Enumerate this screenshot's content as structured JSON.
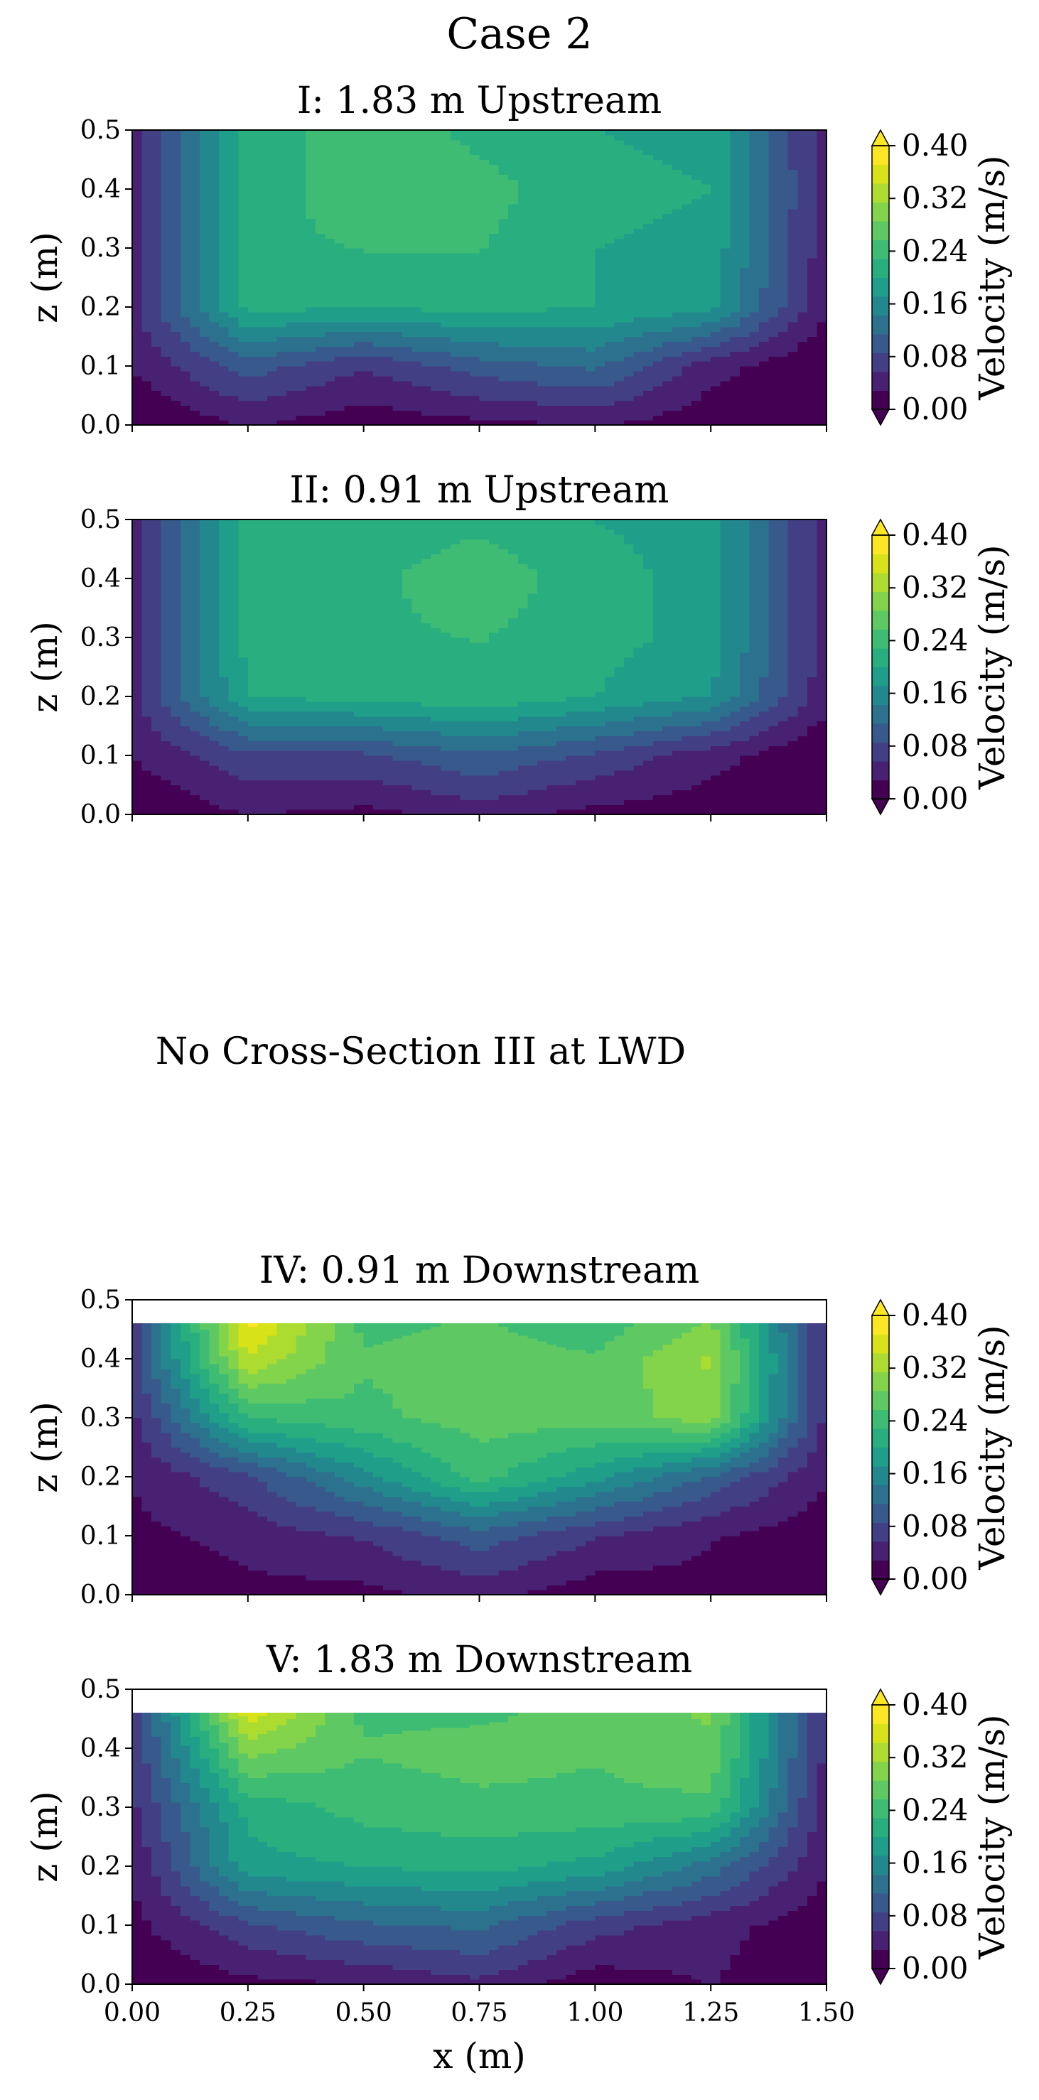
{
  "figure": {
    "suptitle": "Case 2",
    "note": "No Cross-Section III at LWD",
    "colors": [
      "#440154",
      "#482172",
      "#423f85",
      "#38598c",
      "#2c718e",
      "#23888e",
      "#1f9e89",
      "#29af7f",
      "#3fbc73",
      "#5ec962",
      "#84d44b",
      "#addc30",
      "#d8e219",
      "#fde725"
    ]
  },
  "chart_data": [
    {
      "type": "heatmap",
      "title": "I: 1.83 m Upstream",
      "xlabel": "",
      "ylabel": "z (m)",
      "xlim": [
        0.0,
        1.5
      ],
      "ylim": [
        0.0,
        0.5
      ],
      "yticks": [
        "0.0",
        "0.1",
        "0.2",
        "0.3",
        "0.4",
        "0.5"
      ],
      "xticks": [],
      "colorbar": {
        "label": "Velocity (m/s)",
        "ticks": [
          "0.00",
          "0.08",
          "0.16",
          "0.24",
          "0.32",
          "0.40"
        ],
        "vmin": 0.0,
        "vmax": 0.4
      },
      "water_surface": 0.5,
      "x": [
        0.0,
        0.25,
        0.5,
        0.75,
        1.0,
        1.25,
        1.5
      ],
      "z": [
        0.0,
        0.1,
        0.2,
        0.3,
        0.4,
        0.5
      ],
      "values": [
        [
          0.0,
          0.03,
          0.01,
          0.02,
          0.03,
          0.01,
          0.0
        ],
        [
          0.03,
          0.1,
          0.06,
          0.1,
          0.12,
          0.04,
          0.0
        ],
        [
          0.05,
          0.21,
          0.2,
          0.21,
          0.2,
          0.18,
          0.03
        ],
        [
          0.05,
          0.22,
          0.23,
          0.23,
          0.2,
          0.19,
          0.04
        ],
        [
          0.05,
          0.21,
          0.25,
          0.24,
          0.21,
          0.2,
          0.04
        ],
        [
          0.05,
          0.21,
          0.25,
          0.22,
          0.2,
          0.19,
          0.04
        ]
      ]
    },
    {
      "type": "heatmap",
      "title": "II: 0.91 m Upstream",
      "xlabel": "",
      "ylabel": "z (m)",
      "xlim": [
        0.0,
        1.5
      ],
      "ylim": [
        0.0,
        0.5
      ],
      "yticks": [
        "0.0",
        "0.1",
        "0.2",
        "0.3",
        "0.4",
        "0.5"
      ],
      "xticks": [],
      "colorbar": {
        "label": "Velocity (m/s)",
        "ticks": [
          "0.00",
          "0.08",
          "0.16",
          "0.24",
          "0.32",
          "0.40"
        ],
        "vmin": 0.0,
        "vmax": 0.4
      },
      "water_surface": 0.5,
      "x": [
        0.0,
        0.25,
        0.5,
        0.75,
        1.0,
        1.25,
        1.5
      ],
      "z": [
        0.0,
        0.1,
        0.2,
        0.3,
        0.4,
        0.5
      ],
      "values": [
        [
          0.0,
          0.03,
          0.02,
          0.04,
          0.02,
          0.01,
          0.0
        ],
        [
          0.03,
          0.08,
          0.08,
          0.11,
          0.08,
          0.04,
          0.0
        ],
        [
          0.05,
          0.2,
          0.21,
          0.22,
          0.2,
          0.17,
          0.04
        ],
        [
          0.05,
          0.21,
          0.22,
          0.23,
          0.21,
          0.19,
          0.04
        ],
        [
          0.05,
          0.21,
          0.22,
          0.25,
          0.21,
          0.19,
          0.04
        ],
        [
          0.05,
          0.21,
          0.21,
          0.22,
          0.2,
          0.19,
          0.04
        ]
      ]
    },
    {
      "type": "heatmap",
      "title": "IV: 0.91 m Downstream",
      "xlabel": "",
      "ylabel": "z (m)",
      "xlim": [
        0.0,
        1.5
      ],
      "ylim": [
        0.0,
        0.5
      ],
      "yticks": [
        "0.0",
        "0.1",
        "0.2",
        "0.3",
        "0.4",
        "0.5"
      ],
      "xticks": [],
      "colorbar": {
        "label": "Velocity (m/s)",
        "ticks": [
          "0.00",
          "0.08",
          "0.16",
          "0.24",
          "0.32",
          "0.40"
        ],
        "vmin": 0.0,
        "vmax": 0.4
      },
      "water_surface": 0.46,
      "x": [
        0.0,
        0.25,
        0.5,
        0.75,
        1.0,
        1.25,
        1.5
      ],
      "z": [
        0.0,
        0.1,
        0.2,
        0.3,
        0.4,
        0.46
      ],
      "values": [
        [
          0.0,
          0.02,
          0.02,
          0.04,
          0.01,
          0.02,
          0.0
        ],
        [
          0.02,
          0.04,
          0.06,
          0.1,
          0.06,
          0.03,
          0.01
        ],
        [
          0.03,
          0.08,
          0.16,
          0.24,
          0.18,
          0.11,
          0.03
        ],
        [
          0.05,
          0.23,
          0.25,
          0.27,
          0.27,
          0.3,
          0.05
        ],
        [
          0.07,
          0.34,
          0.26,
          0.27,
          0.26,
          0.32,
          0.05
        ],
        [
          0.06,
          0.38,
          0.25,
          0.26,
          0.24,
          0.29,
          0.05
        ]
      ]
    },
    {
      "type": "heatmap",
      "title": "V: 1.83 m Downstream",
      "xlabel": "x (m)",
      "ylabel": "z (m)",
      "xlim": [
        0.0,
        1.5
      ],
      "ylim": [
        0.0,
        0.5
      ],
      "yticks": [
        "0.0",
        "0.1",
        "0.2",
        "0.3",
        "0.4",
        "0.5"
      ],
      "xticks": [
        "0.00",
        "0.25",
        "0.50",
        "0.75",
        "1.00",
        "1.25",
        "1.50"
      ],
      "colorbar": {
        "label": "Velocity (m/s)",
        "ticks": [
          "0.00",
          "0.08",
          "0.16",
          "0.24",
          "0.32",
          "0.40"
        ],
        "vmin": 0.0,
        "vmax": 0.4
      },
      "water_surface": 0.46,
      "x": [
        0.0,
        0.25,
        0.5,
        0.75,
        1.0,
        1.25,
        1.5
      ],
      "z": [
        0.0,
        0.1,
        0.2,
        0.3,
        0.4,
        0.46
      ],
      "values": [
        [
          0.0,
          0.02,
          0.03,
          0.05,
          0.01,
          0.03,
          0.0
        ],
        [
          0.02,
          0.08,
          0.11,
          0.12,
          0.07,
          0.04,
          0.01
        ],
        [
          0.03,
          0.19,
          0.2,
          0.21,
          0.19,
          0.13,
          0.03
        ],
        [
          0.05,
          0.21,
          0.24,
          0.25,
          0.25,
          0.25,
          0.04
        ],
        [
          0.06,
          0.3,
          0.26,
          0.27,
          0.26,
          0.28,
          0.05
        ],
        [
          0.06,
          0.36,
          0.25,
          0.25,
          0.27,
          0.29,
          0.05
        ]
      ]
    }
  ]
}
